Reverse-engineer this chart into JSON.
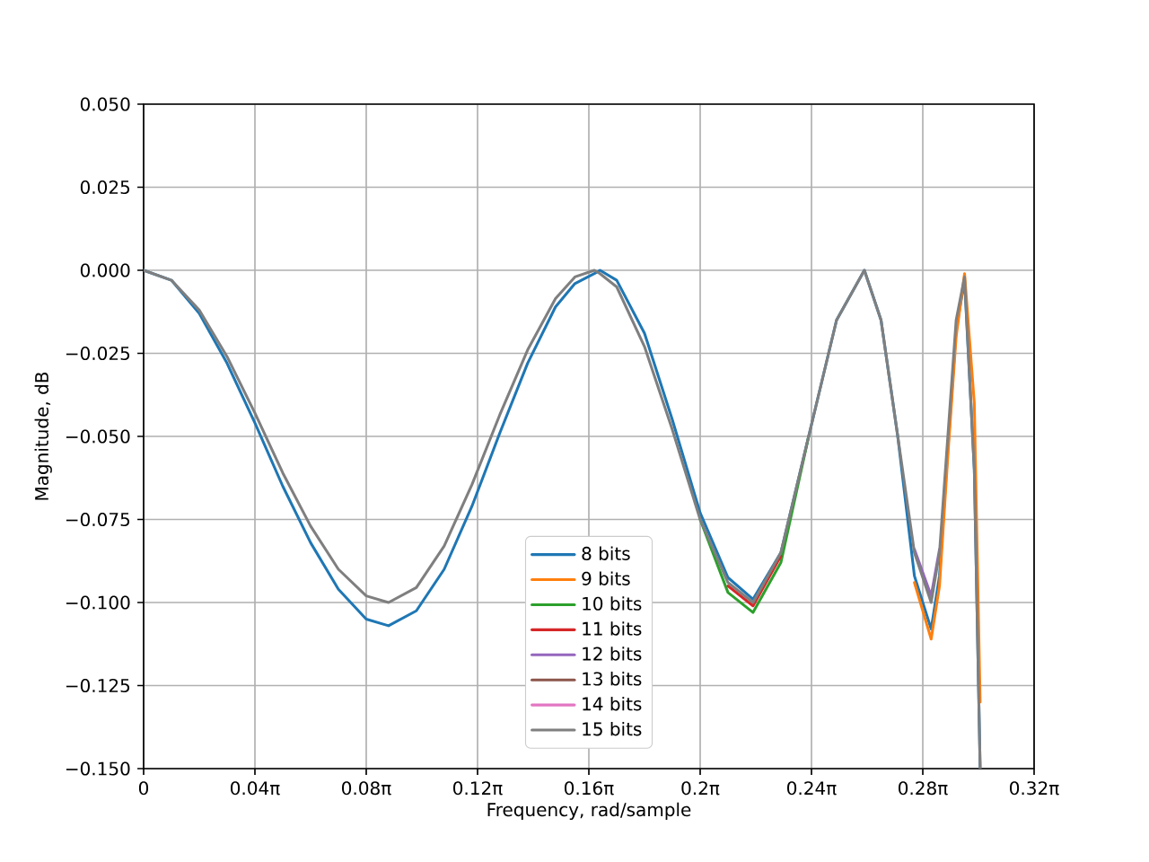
{
  "chart_data": {
    "type": "line",
    "xlabel": "Frequency, rad/sample",
    "ylabel": "Magnitude, dB",
    "x": [
      0,
      0.0314,
      0.0628,
      0.0942,
      0.1257,
      0.1571,
      0.1885,
      0.2199,
      0.2513,
      0.2765,
      0.3079,
      0.3393,
      0.3707,
      0.4021,
      0.4335,
      0.465,
      0.4869,
      0.5089,
      0.5152,
      0.5341,
      0.5655,
      0.5969,
      0.6283,
      0.6597,
      0.688,
      0.7194,
      0.7508,
      0.7823,
      0.8137,
      0.8325,
      0.8514,
      0.8702,
      0.8891,
      0.8985,
      0.9079,
      0.9173,
      0.9268,
      0.9378,
      0.9444
    ],
    "series": [
      {
        "name": "8 bits",
        "color": "#1f77b4",
        "values": [
          0,
          -0.003,
          -0.013,
          -0.028,
          -0.046,
          -0.065,
          -0.082,
          -0.096,
          -0.105,
          -0.107,
          -0.1025,
          -0.09,
          -0.071,
          -0.049,
          -0.028,
          -0.011,
          -0.004,
          -0.001,
          0,
          -0.003,
          -0.019,
          -0.045,
          -0.073,
          -0.0925,
          -0.099,
          -0.085,
          -0.05,
          -0.015,
          0,
          -0.015,
          -0.05,
          -0.092,
          -0.108,
          -0.092,
          -0.054,
          -0.018,
          -0.003,
          -0.06,
          -0.15
        ]
      },
      {
        "name": "9 bits",
        "color": "#ff7f0e",
        "values": [
          null,
          null,
          null,
          null,
          null,
          null,
          null,
          null,
          null,
          null,
          null,
          null,
          null,
          null,
          null,
          null,
          null,
          null,
          null,
          null,
          null,
          null,
          null,
          null,
          null,
          null,
          null,
          null,
          null,
          null,
          null,
          -0.094,
          -0.111,
          -0.095,
          -0.056,
          -0.02,
          -0.001,
          -0.04,
          -0.13
        ]
      },
      {
        "name": "10 bits",
        "color": "#2ca02c",
        "values": [
          null,
          null,
          null,
          null,
          null,
          null,
          null,
          null,
          null,
          null,
          null,
          null,
          null,
          null,
          null,
          null,
          null,
          null,
          null,
          null,
          null,
          null,
          -0.075,
          -0.097,
          -0.103,
          -0.088,
          -0.05,
          null,
          null,
          null,
          null,
          null,
          null,
          null,
          null,
          null,
          null,
          null,
          null
        ]
      },
      {
        "name": "11 bits",
        "color": "#d62728",
        "values": [
          null,
          null,
          null,
          null,
          null,
          null,
          null,
          null,
          null,
          null,
          null,
          null,
          null,
          null,
          null,
          null,
          null,
          null,
          null,
          null,
          null,
          null,
          null,
          -0.095,
          -0.101,
          -0.086,
          null,
          null,
          null,
          null,
          null,
          null,
          null,
          null,
          null,
          null,
          null,
          null,
          null
        ]
      },
      {
        "name": "12 bits",
        "color": "#9467bd",
        "values": [
          null,
          null,
          null,
          null,
          null,
          null,
          null,
          null,
          null,
          null,
          null,
          null,
          null,
          null,
          null,
          null,
          null,
          null,
          null,
          null,
          null,
          null,
          null,
          null,
          null,
          null,
          null,
          null,
          null,
          null,
          null,
          -0.084,
          -0.098,
          -0.084,
          null,
          null,
          null,
          null,
          null
        ]
      },
      {
        "name": "13 bits",
        "color": "#8c564b",
        "values": [
          null,
          null,
          null,
          null,
          null,
          null,
          null,
          null,
          null,
          null,
          null,
          null,
          null,
          null,
          null,
          null,
          null,
          null,
          null,
          null,
          null,
          null,
          null,
          null,
          null,
          null,
          null,
          null,
          null,
          null,
          null,
          null,
          null,
          null,
          null,
          null,
          null,
          null,
          null
        ]
      },
      {
        "name": "14 bits",
        "color": "#e377c2",
        "values": [
          null,
          null,
          null,
          null,
          null,
          null,
          null,
          null,
          null,
          null,
          null,
          null,
          null,
          null,
          null,
          null,
          null,
          null,
          null,
          null,
          null,
          null,
          null,
          null,
          null,
          null,
          null,
          null,
          null,
          null,
          null,
          null,
          null,
          null,
          null,
          null,
          null,
          null,
          null
        ]
      },
      {
        "name": "15 bits",
        "color": "#7f7f7f",
        "values": [
          0,
          -0.003,
          -0.012,
          -0.026,
          -0.043,
          -0.061,
          -0.077,
          -0.09,
          -0.098,
          -0.1,
          -0.0955,
          -0.083,
          -0.0645,
          -0.0435,
          -0.024,
          -0.0085,
          -0.002,
          0,
          -0.001,
          -0.005,
          -0.023,
          -0.048,
          -0.075,
          -0.094,
          -0.1,
          -0.085,
          -0.05,
          -0.015,
          0,
          -0.015,
          -0.05,
          -0.085,
          -0.1,
          -0.085,
          -0.05,
          -0.015,
          -0.002,
          -0.06,
          -0.15
        ]
      }
    ],
    "xlim": [
      0,
      1.00531
    ],
    "xticks": [
      0,
      {
        "value": 0.12566,
        "label": "0.04π"
      },
      {
        "value": 0.25133,
        "label": "0.08π"
      },
      {
        "value": 0.37699,
        "label": "0.12π"
      },
      {
        "value": 0.50265,
        "label": "0.16π"
      },
      {
        "value": 0.62832,
        "label": "0.2π"
      },
      {
        "value": 0.75398,
        "label": "0.24π"
      },
      {
        "value": 0.87965,
        "label": "0.28π"
      },
      {
        "value": 1.00531,
        "label": "0.32π"
      }
    ],
    "ylim": [
      -0.15,
      0.05
    ],
    "yticks": [
      {
        "value": -0.15,
        "label": "−0.150"
      },
      {
        "value": -0.125,
        "label": "−0.125"
      },
      {
        "value": -0.1,
        "label": "−0.100"
      },
      {
        "value": -0.075,
        "label": "−0.075"
      },
      {
        "value": -0.05,
        "label": "−0.050"
      },
      {
        "value": -0.025,
        "label": "−0.025"
      },
      {
        "value": 0,
        "label": "0.000"
      },
      {
        "value": 0.025,
        "label": "0.025"
      },
      {
        "value": 0.05,
        "label": "0.050"
      }
    ],
    "grid": true,
    "legend": "bottom"
  }
}
